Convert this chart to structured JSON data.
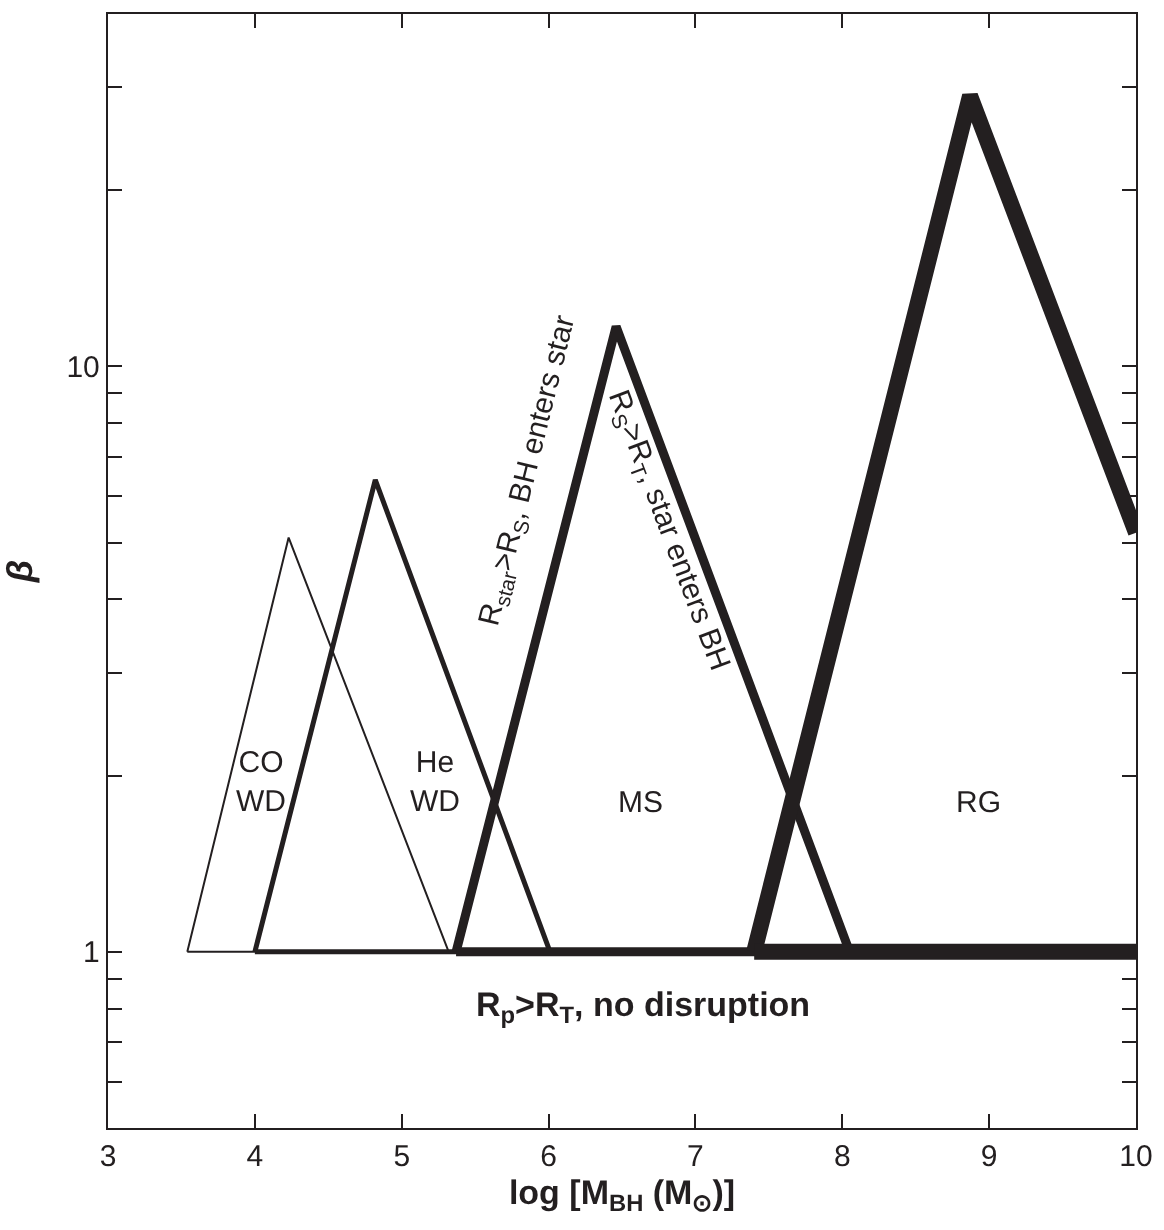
{
  "chart_data": {
    "type": "line",
    "xlabel": "log [M$_{BH}$ (M$_{⊙}$)]",
    "ylabel": "β",
    "log": "y",
    "marker": "none",
    "line_style": "solid",
    "xlim": [
      3,
      10
    ],
    "xticks": [
      3,
      4,
      5,
      6,
      7,
      8,
      9,
      10
    ],
    "ylim": [
      0.5,
      40
    ],
    "yticks": [
      {
        "value": 0.6,
        "label": null
      },
      {
        "value": 0.7,
        "label": null
      },
      {
        "value": 0.8,
        "label": null
      },
      {
        "value": 0.9,
        "label": null
      },
      1,
      {
        "value": 2,
        "label": null
      },
      {
        "value": 3,
        "label": null
      },
      {
        "value": 4,
        "label": null
      },
      {
        "value": 5,
        "label": null
      },
      {
        "value": 6,
        "label": null
      },
      {
        "value": 7,
        "label": null
      },
      {
        "value": 8,
        "label": null
      },
      {
        "value": 9,
        "label": null
      },
      10,
      {
        "value": 20,
        "label": null
      },
      {
        "value": 30,
        "label": null
      }
    ],
    "series": [
      {
        "color": "#231f20",
        "x": [
          3.54,
          4.23,
          5.32
        ],
        "values": [
          1,
          5.1,
          1
        ]
      },
      {
        "color": "#231f20",
        "x": [
          3.54,
          5.32
        ],
        "values": [
          1,
          1
        ]
      },
      {
        "color": "#231f20",
        "x": [
          4.0,
          4.82,
          6.01
        ],
        "values": [
          1,
          6.4,
          1
        ]
      },
      {
        "color": "#231f20",
        "x": [
          4.0,
          6.01
        ],
        "values": [
          1,
          1
        ]
      },
      {
        "color": "#231f20",
        "x": [
          5.37,
          6.46,
          8.05
        ],
        "values": [
          1,
          11.7,
          1
        ]
      },
      {
        "color": "#231f20",
        "x": [
          5.37,
          8.05
        ],
        "values": [
          1,
          1
        ]
      },
      {
        "color": "#231f20",
        "x": [
          7.4,
          8.87,
          10
        ],
        "values": [
          1,
          29,
          5.2
        ]
      },
      {
        "color": "#231f20",
        "x": [
          7.4,
          10
        ],
        "values": [
          1,
          1
        ]
      }
    ],
    "annotations": [
      "CO\nWD",
      "He\nWD",
      "MS",
      "RG",
      "R$_{star}$>R$_{S}$, BH enters star",
      "R$_{S}$>R$_{T}$, star enters BH",
      "R$_{p}$>R$_{T}$, no disruption"
    ]
  }
}
